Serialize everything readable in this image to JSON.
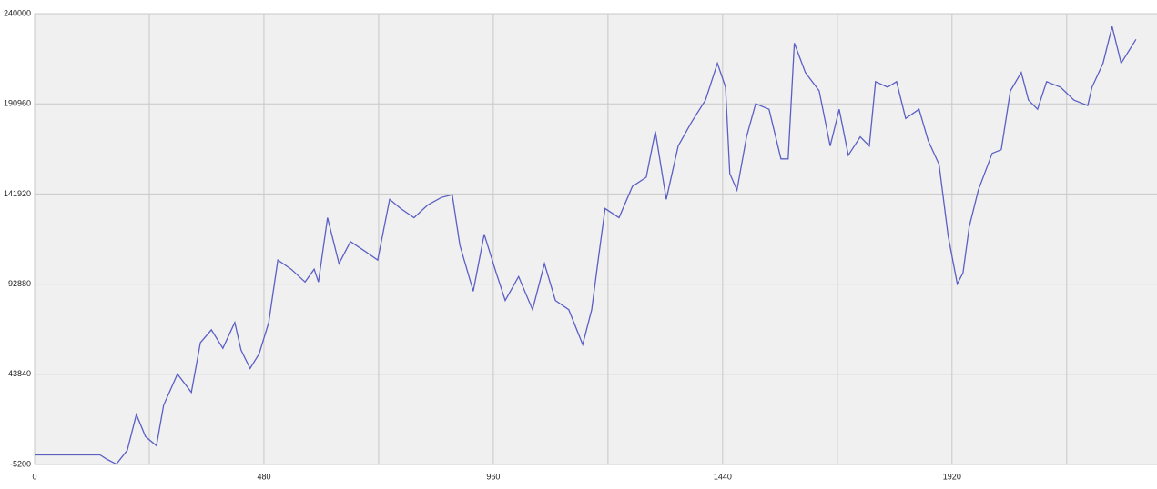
{
  "chart_data": {
    "type": "line",
    "x": [
      0,
      137,
      152,
      171,
      194,
      213,
      232,
      255,
      270,
      299,
      328,
      347,
      370,
      394,
      419,
      432,
      451,
      470,
      490,
      509,
      537,
      566,
      585,
      594,
      613,
      637,
      661,
      690,
      718,
      743,
      766,
      794,
      823,
      851,
      874,
      890,
      918,
      941,
      966,
      985,
      1013,
      1042,
      1067,
      1090,
      1118,
      1147,
      1166,
      1181,
      1194,
      1223,
      1251,
      1280,
      1299,
      1322,
      1347,
      1375,
      1404,
      1429,
      1446,
      1455,
      1470,
      1490,
      1509,
      1537,
      1562,
      1577,
      1590,
      1613,
      1642,
      1665,
      1684,
      1703,
      1728,
      1747,
      1760,
      1785,
      1804,
      1823,
      1851,
      1870,
      1893,
      1912,
      1931,
      1943,
      1956,
      1975,
      2004,
      2023,
      2042,
      2065,
      2080,
      2099,
      2118,
      2147,
      2175,
      2204,
      2213,
      2236,
      2255,
      2274,
      2305
    ],
    "series": [
      {
        "color": "#5b5fc4",
        "values": [
          0,
          0,
          -2500,
          -5000,
          2500,
          22000,
          10000,
          5000,
          27000,
          44000,
          34000,
          61000,
          68000,
          58000,
          72000,
          57000,
          47000,
          55000,
          72000,
          106000,
          101000,
          94000,
          101000,
          94000,
          129000,
          104000,
          116000,
          111000,
          106000,
          139000,
          134000,
          129000,
          136000,
          140000,
          141500,
          114000,
          89000,
          120000,
          99000,
          84000,
          97000,
          79000,
          104000,
          84000,
          79000,
          60000,
          79000,
          109000,
          134000,
          129000,
          146000,
          151000,
          176000,
          139000,
          168000,
          181000,
          193000,
          213000,
          200000,
          153000,
          144000,
          173000,
          191000,
          188000,
          161000,
          161000,
          224000,
          208000,
          198000,
          168000,
          188000,
          163000,
          173000,
          168000,
          203000,
          200000,
          203000,
          183000,
          188000,
          171000,
          158000,
          119000,
          93000,
          99000,
          124000,
          144000,
          164000,
          166000,
          198000,
          208000,
          193000,
          188000,
          203000,
          200000,
          193000,
          190000,
          200000,
          213000,
          233000,
          213000,
          226000
        ]
      }
    ],
    "xlim": [
      0,
      2349
    ],
    "ylim": [
      -5200,
      240000
    ],
    "xticks": [
      0,
      480,
      960,
      1440,
      1920
    ],
    "xminor": [
      240,
      720,
      1200,
      1680,
      2160
    ],
    "yticks": [
      -5200,
      43840,
      92880,
      141920,
      190960,
      240000
    ],
    "grid": true
  }
}
